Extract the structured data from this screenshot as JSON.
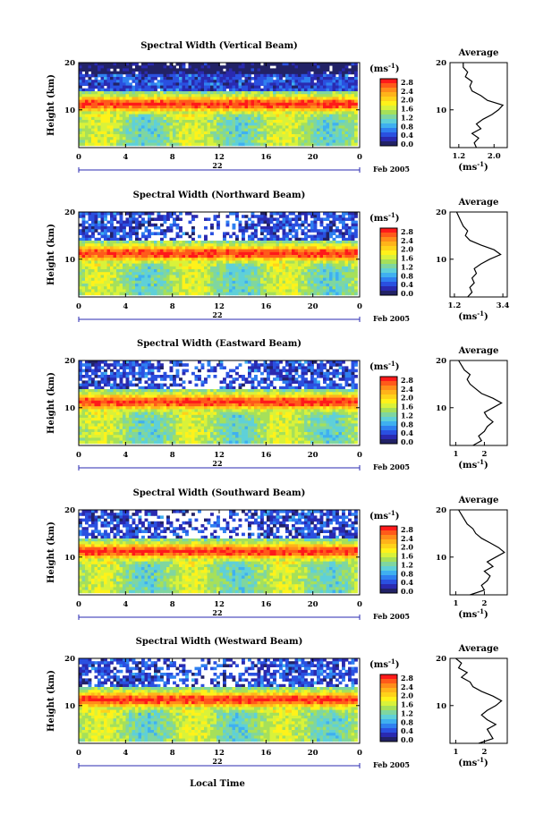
{
  "figure": {
    "xlabel": "Local Time",
    "date_note": "Feb 2005",
    "unit_label": "(ms",
    "unit_exp": "-1",
    "unit_close": ")",
    "avg_xlabel": "(ms",
    "avg_title": "Average",
    "ylabel": "Height (km)"
  },
  "colorbar": {
    "ticks": [
      "2.8",
      "2.4",
      "2.0",
      "1.6",
      "1.2",
      "0.8",
      "0.4",
      "0.0"
    ],
    "colors": [
      "#ff1a1a",
      "#ff5a1a",
      "#ff8c1a",
      "#ffb31a",
      "#ffd21a",
      "#fff21a",
      "#d9f23a",
      "#a6e05a",
      "#7fd6a0",
      "#5fd0d8",
      "#3fb0f0",
      "#2f80f0",
      "#2a50e0",
      "#2a2ab0",
      "#222266"
    ]
  },
  "chart_data": [
    {
      "type": "heatmap",
      "title": "Spectral Width (Vertical Beam)",
      "xlabel": "Local Time",
      "ylabel": "Height (km)",
      "x_ticks": [
        "0",
        "4",
        "8",
        "12",
        "16",
        "20",
        "0"
      ],
      "xlim": [
        0,
        24
      ],
      "y_ticks": [
        "20",
        "10"
      ],
      "ylim": [
        2,
        20
      ],
      "date_label": "22",
      "colorbar_unit": "ms-1",
      "colorbar_range": [
        0.0,
        2.8
      ],
      "average_profile": {
        "title": "Average",
        "x_ticks": [
          "1.2",
          "2.0"
        ],
        "xlim": [
          1.0,
          2.3
        ],
        "y_ticks": [
          "20",
          "10"
        ],
        "height_km": [
          2,
          3,
          4,
          5,
          6,
          7,
          8,
          9,
          10,
          11,
          12,
          13,
          14,
          15,
          16,
          17,
          18,
          19,
          20
        ],
        "values": [
          1.6,
          1.55,
          1.65,
          1.5,
          1.7,
          1.6,
          1.75,
          1.95,
          2.1,
          2.2,
          1.85,
          1.7,
          1.5,
          1.45,
          1.5,
          1.35,
          1.4,
          1.3,
          1.3
        ]
      }
    },
    {
      "type": "heatmap",
      "title": "Spectral Width (Northward Beam)",
      "xlabel": "Local Time",
      "ylabel": "Height (km)",
      "x_ticks": [
        "0",
        "4",
        "8",
        "12",
        "16",
        "20",
        "0"
      ],
      "xlim": [
        0,
        24
      ],
      "y_ticks": [
        "20",
        "10"
      ],
      "ylim": [
        2,
        20
      ],
      "date_label": "22",
      "colorbar_unit": "ms-1",
      "colorbar_range": [
        0.0,
        2.8
      ],
      "average_profile": {
        "title": "Average",
        "x_ticks": [
          "1.2",
          "3.4"
        ],
        "xlim": [
          1.0,
          3.6
        ],
        "y_ticks": [
          "20",
          "10"
        ],
        "height_km": [
          2,
          3,
          4,
          5,
          6,
          7,
          8,
          9,
          10,
          11,
          12,
          13,
          14,
          15,
          16,
          17,
          18,
          19,
          20
        ],
        "values": [
          1.8,
          2.0,
          1.9,
          2.1,
          2.0,
          2.2,
          2.1,
          2.4,
          2.8,
          3.3,
          3.0,
          2.4,
          1.9,
          1.7,
          1.8,
          1.6,
          1.5,
          1.4,
          1.3
        ]
      }
    },
    {
      "type": "heatmap",
      "title": "Spectral Width (Eastward Beam)",
      "xlabel": "Local Time",
      "ylabel": "Height (km)",
      "x_ticks": [
        "0",
        "4",
        "8",
        "12",
        "16",
        "20",
        "0"
      ],
      "xlim": [
        0,
        24
      ],
      "y_ticks": [
        "20",
        "10"
      ],
      "ylim": [
        2,
        20
      ],
      "date_label": "22",
      "colorbar_unit": "ms-1",
      "colorbar_range": [
        0.0,
        2.8
      ],
      "average_profile": {
        "title": "Average",
        "x_ticks": [
          "1",
          "2"
        ],
        "xlim": [
          0.8,
          2.8
        ],
        "y_ticks": [
          "20",
          "10"
        ],
        "height_km": [
          2,
          3,
          4,
          5,
          6,
          7,
          8,
          9,
          10,
          11,
          12,
          13,
          14,
          15,
          16,
          17,
          18,
          19,
          20
        ],
        "values": [
          1.6,
          1.9,
          1.8,
          2.0,
          2.1,
          2.3,
          2.1,
          2.0,
          2.3,
          2.6,
          2.3,
          1.9,
          1.7,
          1.5,
          1.4,
          1.5,
          1.3,
          1.2,
          1.1
        ]
      }
    },
    {
      "type": "heatmap",
      "title": "Spectral Width (Southward Beam)",
      "xlabel": "Local Time",
      "ylabel": "Height (km)",
      "x_ticks": [
        "0",
        "4",
        "8",
        "12",
        "16",
        "20",
        "0"
      ],
      "xlim": [
        0,
        24
      ],
      "y_ticks": [
        "20",
        "10"
      ],
      "ylim": [
        2,
        20
      ],
      "date_label": "22",
      "colorbar_unit": "ms-1",
      "colorbar_range": [
        0.0,
        2.8
      ],
      "average_profile": {
        "title": "Average",
        "x_ticks": [
          "1",
          "2"
        ],
        "xlim": [
          0.8,
          2.8
        ],
        "y_ticks": [
          "20",
          "10"
        ],
        "height_km": [
          2,
          3,
          4,
          5,
          6,
          7,
          8,
          9,
          10,
          11,
          12,
          13,
          14,
          15,
          16,
          17,
          18,
          19,
          20
        ],
        "values": [
          1.5,
          2.0,
          1.9,
          2.1,
          2.2,
          2.0,
          2.3,
          2.1,
          2.4,
          2.7,
          2.5,
          2.2,
          1.9,
          1.7,
          1.6,
          1.4,
          1.3,
          1.2,
          1.1
        ]
      }
    },
    {
      "type": "heatmap",
      "title": "Spectral Width (Westward Beam)",
      "xlabel": "Local Time",
      "ylabel": "Height (km)",
      "x_ticks": [
        "0",
        "4",
        "8",
        "12",
        "16",
        "20",
        "0"
      ],
      "xlim": [
        0,
        24
      ],
      "y_ticks": [
        "20",
        "10"
      ],
      "ylim": [
        2,
        20
      ],
      "date_label": "22",
      "colorbar_unit": "ms-1",
      "colorbar_range": [
        0.0,
        2.8
      ],
      "average_profile": {
        "title": "Average",
        "x_ticks": [
          "1",
          "2"
        ],
        "xlim": [
          0.8,
          2.8
        ],
        "y_ticks": [
          "20",
          "10"
        ],
        "height_km": [
          2,
          3,
          4,
          5,
          6,
          7,
          8,
          9,
          10,
          11,
          12,
          13,
          14,
          15,
          16,
          17,
          18,
          19,
          20
        ],
        "values": [
          1.8,
          2.3,
          2.2,
          2.1,
          2.4,
          2.1,
          1.9,
          2.1,
          2.4,
          2.6,
          2.3,
          1.9,
          1.6,
          1.5,
          1.2,
          1.4,
          1.1,
          1.2,
          1.0
        ]
      }
    }
  ]
}
